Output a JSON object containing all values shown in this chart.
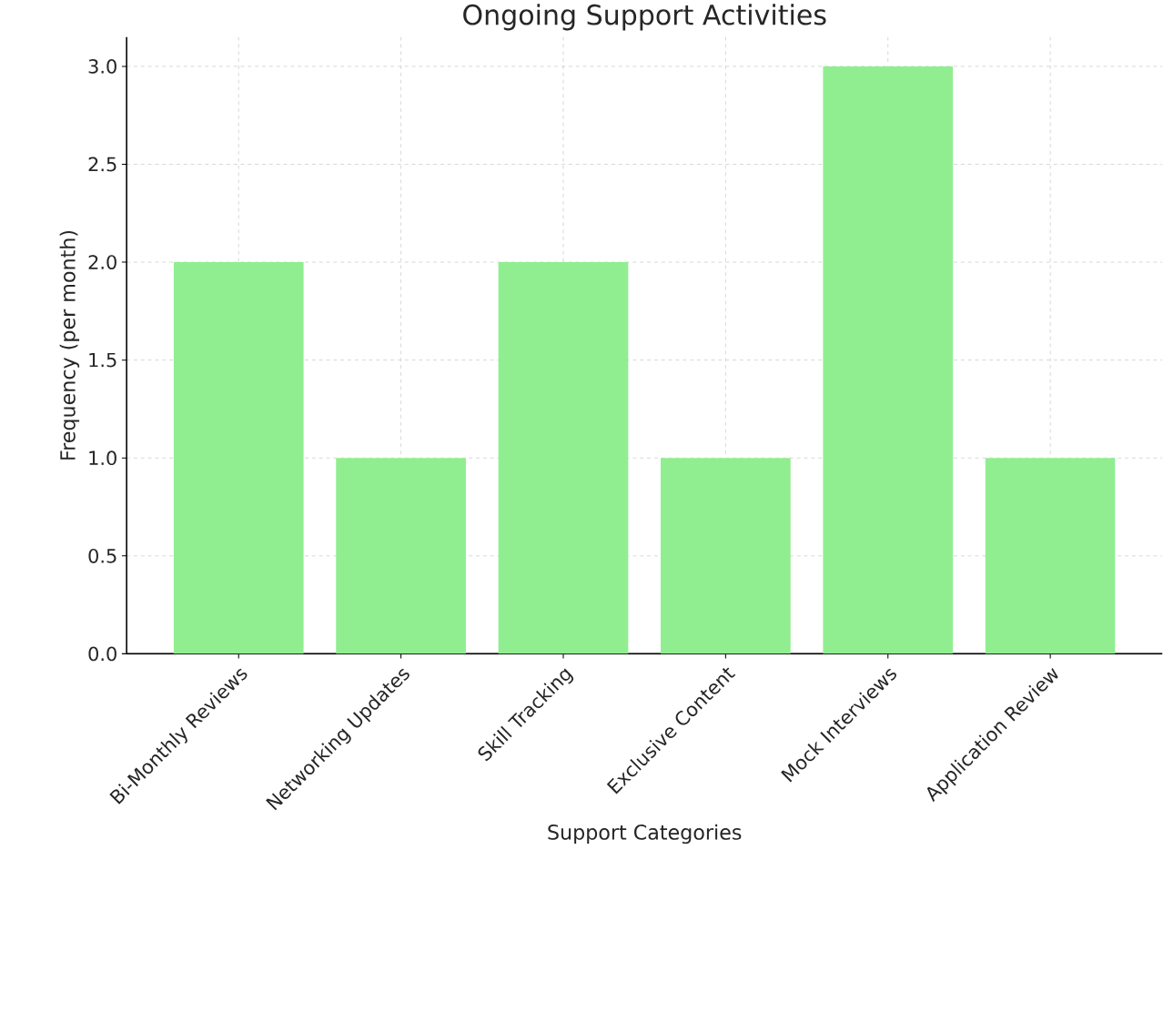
{
  "chart_data": {
    "type": "bar",
    "title": "Ongoing Support Activities",
    "xlabel": "Support Categories",
    "ylabel": "Frequency (per month)",
    "categories": [
      "Bi-Monthly Reviews",
      "Networking Updates",
      "Skill Tracking",
      "Exclusive Content",
      "Mock Interviews",
      "Application Review"
    ],
    "values": [
      2,
      1,
      2,
      1,
      3,
      1
    ],
    "color": "#90ee90",
    "ylim": [
      0,
      3.15
    ],
    "yticks": [
      {
        "value": 0,
        "label": "0.0"
      },
      {
        "value": 0.5,
        "label": "0.5"
      },
      {
        "value": 1,
        "label": "1.0"
      },
      {
        "value": 1.5,
        "label": "1.5"
      },
      {
        "value": 2,
        "label": "2.0"
      },
      {
        "value": 2.5,
        "label": "2.5"
      },
      {
        "value": 3,
        "label": "3.0"
      }
    ],
    "grid": true
  }
}
